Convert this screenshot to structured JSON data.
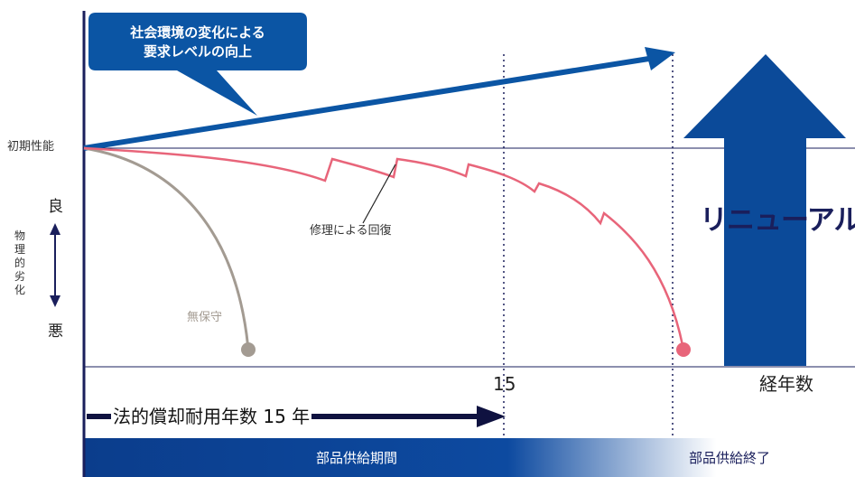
{
  "callout": {
    "line1": "社会環境の変化による",
    "line2": "要求レベルの向上"
  },
  "y_axis": {
    "initial_performance": "初期性能",
    "good": "良",
    "bad": "悪",
    "caption": "物理的劣化"
  },
  "curves": {
    "repair": {
      "label": "修理による回復",
      "color": "#e8657a"
    },
    "no_maintenance": {
      "label": "無保守",
      "color": "#a39b92"
    },
    "requirement": {
      "color": "#0b55a4"
    }
  },
  "renewal": {
    "label": "リニューアル",
    "arrow_color": "#0b4a99"
  },
  "x_axis": {
    "tick": "15",
    "label": "経年数"
  },
  "legal_life": {
    "label": "法的償却耐用年数 15 年"
  },
  "supply_bar": {
    "in_period": "部品供給期間",
    "ended": "部品供給終了",
    "color": "#0b3d8c"
  }
}
